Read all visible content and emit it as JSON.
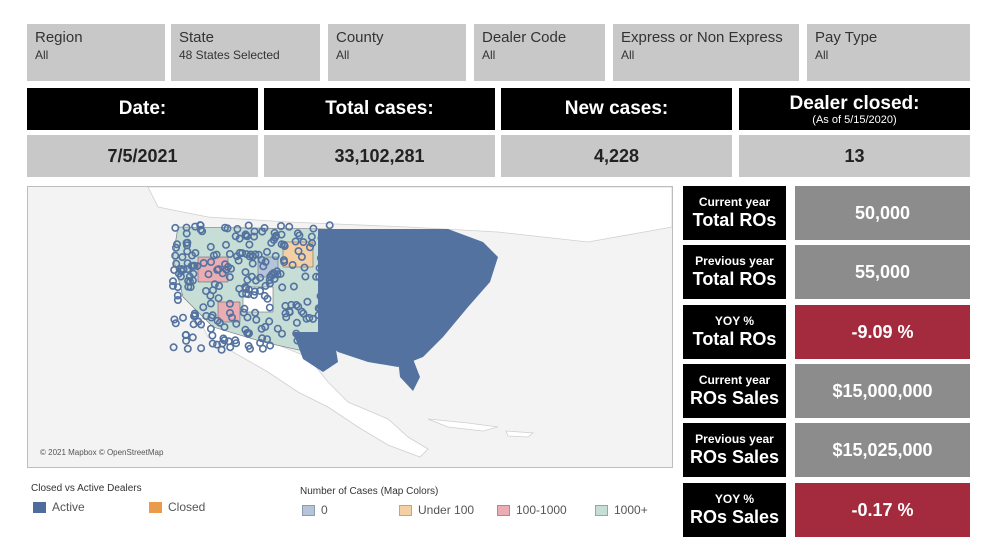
{
  "filters": [
    {
      "label": "Region",
      "value": "All"
    },
    {
      "label": "State",
      "value": "48 States Selected"
    },
    {
      "label": "County",
      "value": "All"
    },
    {
      "label": "Dealer Code",
      "value": "All"
    },
    {
      "label": "Express or Non Express",
      "value": "All"
    },
    {
      "label": "Pay Type",
      "value": "All"
    }
  ],
  "kpis": {
    "date": {
      "label": "Date:",
      "value": "7/5/2021"
    },
    "total_cases": {
      "label": "Total cases:",
      "value": "33,102,281"
    },
    "new_cases": {
      "label": "New cases:",
      "value": "4,228"
    },
    "dealer_closed": {
      "label": "Dealer closed:",
      "sub": "(As of 5/15/2020)",
      "value": "13"
    }
  },
  "metrics": [
    {
      "small": "Current year",
      "big": "Total ROs",
      "value": "50,000",
      "color": "#8c8c8c"
    },
    {
      "small": "Previous year",
      "big": "Total ROs",
      "value": "55,000",
      "color": "#8c8c8c"
    },
    {
      "small": "YOY %",
      "big": "Total ROs",
      "value": "-9.09 %",
      "color": "#a42a3e"
    },
    {
      "small": "Current year",
      "big": "ROs Sales",
      "value": "$15,000,000",
      "color": "#8c8c8c"
    },
    {
      "small": "Previous year",
      "big": "ROs Sales",
      "value": "$15,025,000",
      "color": "#8c8c8c"
    },
    {
      "small": "YOY %",
      "big": "ROs Sales",
      "value": "-0.17 %",
      "color": "#a42a3e"
    }
  ],
  "map": {
    "credit": "© 2021 Mapbox © OpenStreetMap",
    "dot_color": "#53729f"
  },
  "legend_dealers": {
    "title": "Closed vs Active Dealers",
    "items": [
      {
        "label": "Active",
        "color": "#4e6d9d"
      },
      {
        "label": "Closed",
        "color": "#e99a4a"
      }
    ]
  },
  "legend_cases": {
    "title": "Number of Cases (Map Colors)",
    "items": [
      {
        "label": "0",
        "color": "#b5c4d8"
      },
      {
        "label": "Under 100",
        "color": "#f5cfa4"
      },
      {
        "label": "100-1000",
        "color": "#e9adb3"
      },
      {
        "label": "1000+",
        "color": "#c6ded6"
      }
    ]
  }
}
